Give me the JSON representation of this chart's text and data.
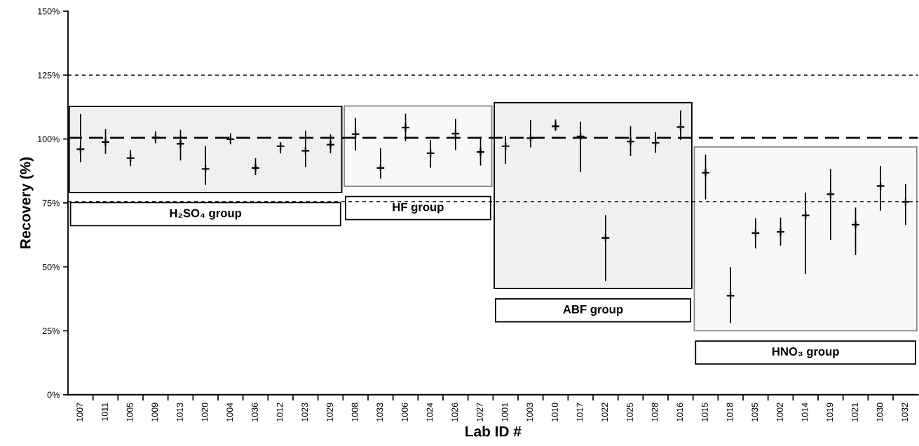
{
  "chart_data": {
    "type": "scatter",
    "xlabel": "Lab ID #",
    "ylabel": "Recovery (%)",
    "categories": [
      "1007",
      "1011",
      "1005",
      "1009",
      "1013",
      "1020",
      "1004",
      "1036",
      "1012",
      "1023",
      "1029",
      "1008",
      "1033",
      "1006",
      "1024",
      "1026",
      "1027",
      "1001",
      "1003",
      "1010",
      "1017",
      "1022",
      "1025",
      "1028",
      "1016",
      "1015",
      "1018",
      "1035",
      "1002",
      "1014",
      "1019",
      "1021",
      "1030",
      "1032"
    ],
    "series": [
      {
        "color": "#000000",
        "values": [
          96.0,
          98.8,
          92.5,
          100.6,
          98.1,
          88.3,
          99.9,
          88.7,
          97.2,
          95.4,
          97.8,
          101.9,
          88.7,
          104.5,
          94.4,
          102.1,
          94.9,
          97.2,
          100.3,
          105.0,
          101.0,
          61.3,
          99.0,
          98.5,
          104.7,
          86.8,
          38.7,
          63.2,
          63.7,
          70.1,
          78.4,
          66.5,
          81.6,
          75.4
        ],
        "errors": [
          [
            90.9,
            109.8
          ],
          [
            94.2,
            103.9
          ],
          [
            89.4,
            95.7
          ],
          [
            98.3,
            103.0
          ],
          [
            91.6,
            103.6
          ],
          [
            82.1,
            97.3
          ],
          [
            97.9,
            102.3
          ],
          [
            85.9,
            92.5
          ],
          [
            94.4,
            98.7
          ],
          [
            89.0,
            103.2
          ],
          [
            94.4,
            101.8
          ],
          [
            95.5,
            108.2
          ],
          [
            84.5,
            96.6
          ],
          [
            99.2,
            109.9
          ],
          [
            88.8,
            99.6
          ],
          [
            95.7,
            107.9
          ],
          [
            89.6,
            100.8
          ],
          [
            90.3,
            101.2
          ],
          [
            96.7,
            107.5
          ],
          [
            103.2,
            107.7
          ],
          [
            87.0,
            106.8
          ],
          [
            44.5,
            70.2
          ],
          [
            93.4,
            105.0
          ],
          [
            94.6,
            102.7
          ],
          [
            99.6,
            111.2
          ],
          [
            76.4,
            93.9
          ],
          [
            28.0,
            49.9
          ],
          [
            57.2,
            69.0
          ],
          [
            58.3,
            69.3
          ],
          [
            47.2,
            79.0
          ],
          [
            60.5,
            88.3
          ],
          [
            54.7,
            73.2
          ],
          [
            72.0,
            89.5
          ],
          [
            66.4,
            82.4
          ]
        ]
      }
    ],
    "ylim": [
      0,
      150
    ],
    "yticks": [
      {
        "value": 0,
        "label": "0%"
      },
      {
        "value": 25,
        "label": "25%"
      },
      {
        "value": 50,
        "label": "50%"
      },
      {
        "value": 75,
        "label": "75%"
      },
      {
        "value": 100,
        "label": "100%"
      },
      {
        "value": 125,
        "label": "125%"
      },
      {
        "value": 150,
        "label": "150%"
      }
    ],
    "ref_lines": [
      {
        "axis": "y",
        "value": 125,
        "line_style": "dotted",
        "color": "#000000"
      },
      {
        "axis": "y",
        "value": 100.5,
        "line_style": "dashed",
        "color": "#000000"
      },
      {
        "axis": "y",
        "value": 75.5,
        "line_style": "dotted",
        "color": "#000000"
      }
    ],
    "bands": [
      {
        "axis": "x",
        "from": "1007",
        "to": "1029",
        "label": "H₂SO₄ group",
        "color": "#000000"
      },
      {
        "axis": "x",
        "from": "1008",
        "to": "1027",
        "label": "HF group",
        "color": "#888888"
      },
      {
        "axis": "x",
        "from": "1001",
        "to": "1016",
        "label": "ABF group",
        "color": "#000000"
      },
      {
        "axis": "x",
        "from": "1015",
        "to": "1032",
        "label": "HNO₃ group",
        "color": "#888888"
      }
    ],
    "grid": false,
    "marker": "cross"
  }
}
